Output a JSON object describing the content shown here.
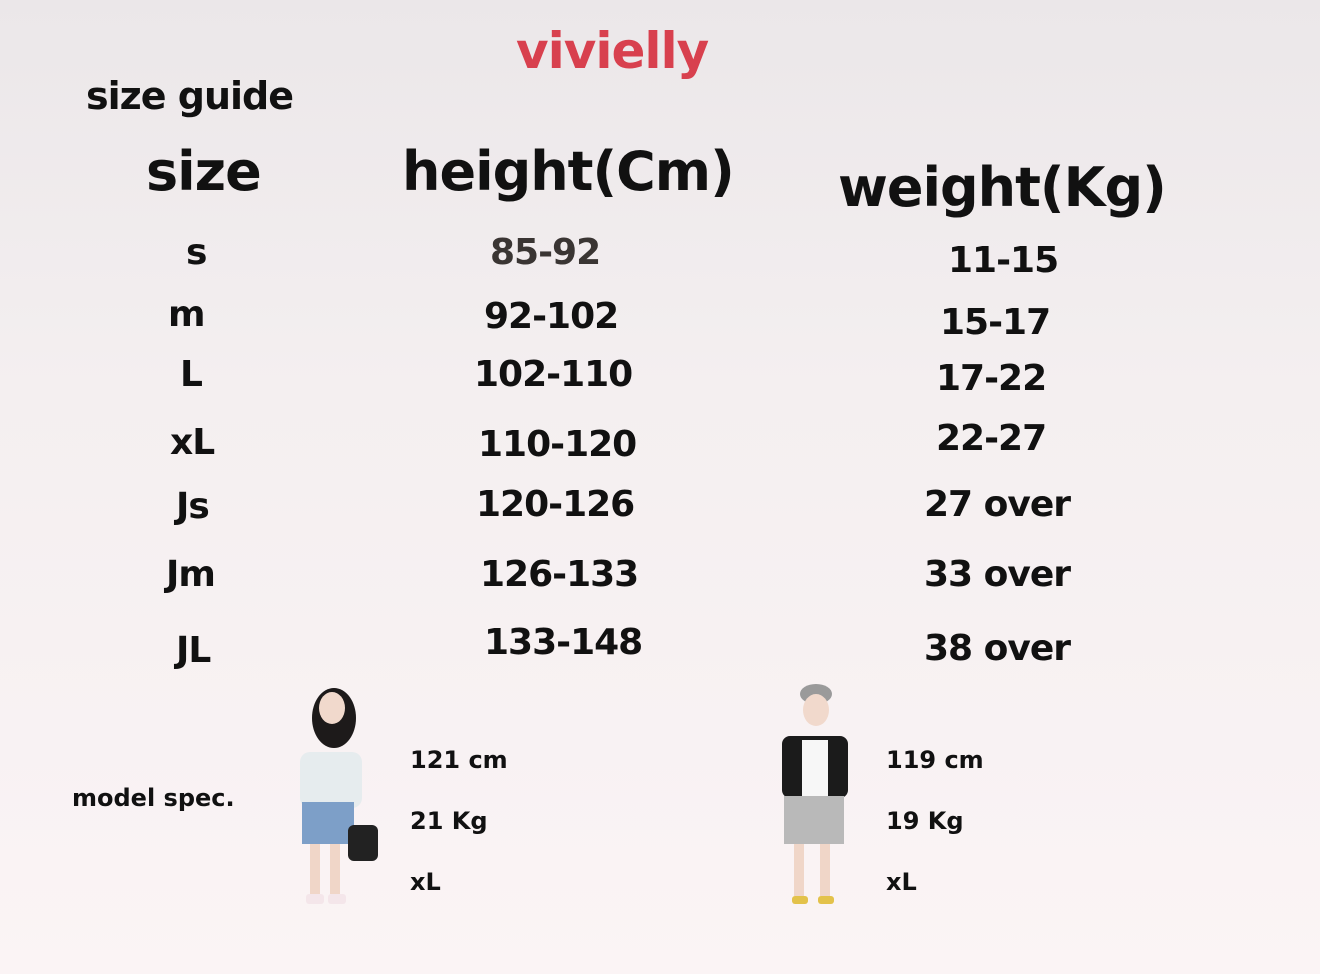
{
  "brand": "vivielly",
  "title": "size guide",
  "columns": [
    "size",
    "height(Cm)",
    "weight(Kg)"
  ],
  "rows": [
    {
      "size": "s",
      "height": "85-92",
      "weight": "11-15"
    },
    {
      "size": "m",
      "height": "92-102",
      "weight": "15-17"
    },
    {
      "size": "L",
      "height": "102-110",
      "weight": "17-22"
    },
    {
      "size": "xL",
      "height": "110-120",
      "weight": "22-27"
    },
    {
      "size": "Js",
      "height": "120-126",
      "weight": "27 over"
    },
    {
      "size": "Jm",
      "height": "126-133",
      "weight": "33 over"
    },
    {
      "size": "JL",
      "height": "133-148",
      "weight": "38 over"
    }
  ],
  "model_spec": {
    "label": "model spec.",
    "models": [
      {
        "height": "121 cm",
        "weight": "21 Kg",
        "size": "xL"
      },
      {
        "height": "119 cm",
        "weight": "19 Kg",
        "size": "xL"
      }
    ]
  },
  "colors": {
    "brand": "#d8404e",
    "text": "#111111"
  }
}
